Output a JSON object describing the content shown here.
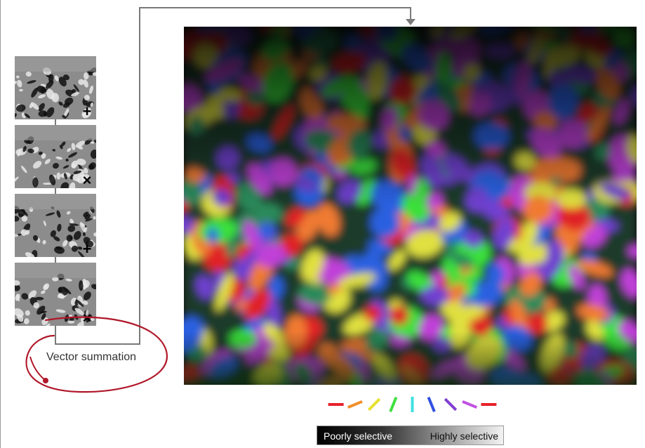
{
  "annotation_label": "Vector summation",
  "scale_bar": {
    "low_label": "Poorly selective",
    "high_label": "Highly selective"
  },
  "thumbnails": [
    {
      "glyph": "+"
    },
    {
      "glyph": "×"
    },
    {
      "glyph": "+"
    },
    {
      "glyph": "×"
    }
  ],
  "orientation_legend": {
    "colors": [
      "#e8202a",
      "#f0902a",
      "#e8e030",
      "#40e040",
      "#40e0e0",
      "#3050e0",
      "#8040d0",
      "#c050e0",
      "#e8202a"
    ],
    "angles_deg": [
      0,
      22.5,
      45,
      67.5,
      90,
      112.5,
      135,
      157.5,
      180
    ]
  },
  "colors": {
    "annotation_ink": "#b0182a",
    "map_palette": [
      "#e02028",
      "#f07a30",
      "#e0e040",
      "#3ae03a",
      "#2a8a5a",
      "#2a60e0",
      "#7040d0",
      "#c040d8"
    ]
  }
}
